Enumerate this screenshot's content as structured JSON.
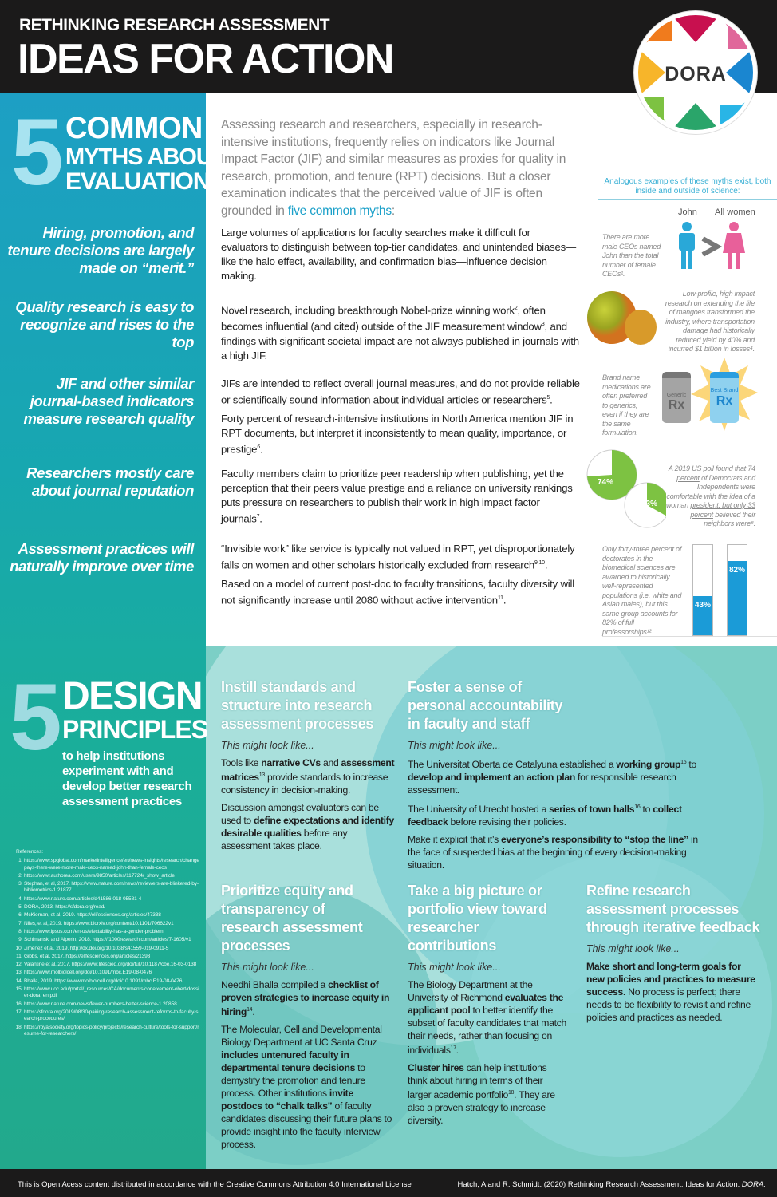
{
  "header": {
    "kicker": "RETHINKING RESEARCH ASSESSMENT",
    "title": "IDEAS FOR ACTION",
    "logo_text": "DORA"
  },
  "myths_section": {
    "number": "5",
    "heading_lines": [
      "COMMON",
      "MYTHS ABOUT",
      "EVALUATION"
    ],
    "intro": [
      {
        "t": "Assessing research and researchers, especially in research-intensive institutions, frequently relies on indicators like Journal Impact Factor (JIF) and similar measures as proxies for quality in research, promotion, and tenure (RPT) decisions. But a closer examination indicates that the perceived value of JIF is often grounded in "
      },
      {
        "t": "five common myths",
        "h": 1
      },
      {
        "t": ":"
      }
    ],
    "analogous_heading": "Analogous examples of these myths exist, both inside and outside of science:",
    "myths": [
      {
        "title": "Hiring, promotion, and tenure decisions are largely made on “merit.”",
        "body": [
          [
            {
              "t": "Large volumes of applications for faculty searches make it difficult for evaluators to distinguish between top-tier candidates, and unintended biases—like the halo effect, availability, and confirmation bias—influence decision making."
            }
          ]
        ]
      },
      {
        "title": "Quality research is easy to recognize and rises to the top",
        "body": [
          [
            {
              "t": "Novel research, including breakthrough Nobel-prize winning work"
            },
            {
              "s": "2"
            },
            {
              "t": ", often becomes influential (and cited) outside of the JIF measurement window"
            },
            {
              "s": "3"
            },
            {
              "t": ", and findings with significant societal impact are not always published in journals with a high JIF."
            }
          ]
        ]
      },
      {
        "title": "JIF and other similar journal-based indicators measure research quality",
        "body": [
          [
            {
              "t": "JIFs are intended to reflect overall journal measures, and do not provide reliable or scientifically sound information about individual articles or researchers"
            },
            {
              "s": "5"
            },
            {
              "t": "."
            }
          ],
          [
            {
              "t": "Forty percent of research-intensive institutions in North America mention JIF in RPT documents, but interpret it inconsistently to mean quality, importance, or prestige"
            },
            {
              "s": "6"
            },
            {
              "t": "."
            }
          ]
        ]
      },
      {
        "title": "Researchers mostly care about journal reputation",
        "body": [
          [
            {
              "t": "Faculty members claim to prioritize peer readership when publishing, yet the perception that their peers value prestige and a reliance on university rankings puts pressure on researchers to publish their work in high impact factor journals"
            },
            {
              "s": "7"
            },
            {
              "t": "."
            }
          ]
        ]
      },
      {
        "title": "Assessment practices will naturally improve over time",
        "body": [
          [
            {
              "t": "“Invisible work” like service is typically not valued in RPT, yet disproportionately falls on women and other scholars historically excluded from research"
            },
            {
              "s": "9,10"
            },
            {
              "t": "."
            }
          ],
          [
            {
              "t": "Based on a model of current post-doc to faculty transitions, faculty diversity will not significantly increase until 2080 without active intervention"
            },
            {
              "s": "11"
            },
            {
              "t": "."
            }
          ]
        ]
      }
    ],
    "examples": {
      "john": {
        "label_left": "John",
        "label_right": "All women",
        "text": "There are more male CEOs named John than the total number of female CEOs¹.",
        "colors": {
          "male": "#29a8d8",
          "female": "#e8609a"
        }
      },
      "mangoes": {
        "text": "Low-profile, high impact research on extending the life of mangoes transformed the industry, where transportation damage had historically reduced yield by 40% and incurred $1 billion in losses⁴."
      },
      "rx": {
        "text": "Brand name medications are often preferred to generics, even if they are the same formulation.",
        "generic_label": "Generic",
        "brand_label": "Best Brand",
        "rx": "Rx"
      },
      "poll": {
        "text_pre": "A 2019 US poll found that ",
        "link1": "74 percent",
        "text_mid": " of Democrats and Independents were comfortable with the idea of a woman ",
        "link2": "president, but only 33 percent",
        "text_post": " believed their neighbors were⁸.",
        "values": [
          74,
          33
        ],
        "labels": [
          "74%",
          "33%"
        ],
        "color": "#7dc242"
      },
      "bars": {
        "text": "Only forty-three percent of doctorates in the biomedical sciences are awarded to historically well-represented populations (i.e. white and Asian males), but this same group accounts for 82% of full professorships¹².",
        "values": [
          43,
          82
        ],
        "labels": [
          "43%",
          "82%"
        ],
        "color": "#1b9bd7"
      }
    }
  },
  "design_section": {
    "number": "5",
    "heading_lines": [
      "DESIGN",
      "PRINCIPLES"
    ],
    "subtitle": "to help institutions experiment with and develop better research assessment practices",
    "might_look": "This might look like...",
    "principles": [
      {
        "title": "Instill standards and structure into research assessment processes",
        "body": [
          [
            {
              "t": "Tools like "
            },
            {
              "t": "narrative CVs",
              "b": 1
            },
            {
              "t": " and "
            },
            {
              "t": "assessment matrices",
              "b": 1
            },
            {
              "s": "13"
            },
            {
              "t": " provide standards to increase consistency in decision-making."
            }
          ],
          [
            {
              "t": "Discussion amongst evaluators can be used to "
            },
            {
              "t": "define expectations and identify desirable qualities",
              "b": 1
            },
            {
              "t": " before any assessment takes place."
            }
          ]
        ]
      },
      {
        "title": "Foster a sense of personal accountability in faculty and staff",
        "body": [
          [
            {
              "t": "The Universitat Oberta de Catalyuna established a "
            },
            {
              "t": "working group",
              "b": 1
            },
            {
              "s": "15"
            },
            {
              "t": " to "
            },
            {
              "t": "develop and implement an action plan",
              "b": 1
            },
            {
              "t": " for responsible research assessment."
            }
          ],
          [
            {
              "t": "The University of Utrecht hosted a "
            },
            {
              "t": "series of town halls",
              "b": 1
            },
            {
              "s": "16"
            },
            {
              "t": " to "
            },
            {
              "t": "collect feedback",
              "b": 1
            },
            {
              "t": " before revising their policies."
            }
          ],
          [
            {
              "t": "Make it explicit that it’s "
            },
            {
              "t": "everyone’s responsibility to “stop the line”",
              "b": 1
            },
            {
              "t": " in the face of suspected bias at the beginning of every decision-making situation."
            }
          ]
        ]
      },
      {
        "title": "Prioritize equity and transparency of research assessment processes",
        "body": [
          [
            {
              "t": "Needhi Bhalla compiled a "
            },
            {
              "t": "checklist of proven strategies to increase equity in hiring",
              "b": 1
            },
            {
              "s": "14"
            },
            {
              "t": "."
            }
          ],
          [
            {
              "t": "The Molecular, Cell and Developmental Biology Department at UC Santa Cruz "
            },
            {
              "t": "includes untenured faculty in departmental tenure decisions",
              "b": 1
            },
            {
              "t": " to demystify the promotion and tenure process. Other institutions "
            },
            {
              "t": "invite postdocs to “chalk talks”",
              "b": 1
            },
            {
              "t": " of faculty candidates discussing their future plans to provide insight into the faculty interview process."
            }
          ]
        ]
      },
      {
        "title": "Take a big picture or portfolio view toward researcher contributions",
        "body": [
          [
            {
              "t": "The Biology Department at the University of Richmond "
            },
            {
              "t": "evaluates the applicant pool",
              "b": 1
            },
            {
              "t": " to better identify the subset of faculty candidates that match their needs, rather than focusing on individuals"
            },
            {
              "s": "17"
            },
            {
              "t": "."
            }
          ],
          [
            {
              "t": "Cluster hires",
              "b": 1
            },
            {
              "t": " can help institutions think about hiring in terms of their larger academic portfolio"
            },
            {
              "s": "18"
            },
            {
              "t": ". They are also a proven strategy to increase diversity."
            }
          ]
        ]
      },
      {
        "title": "Refine research assessment processes through iterative feedback",
        "body": [
          [
            {
              "t": "Make short and long-term goals for new policies and practices to measure success.",
              "b": 1
            },
            {
              "t": " No process is perfect; there needs to be flexibility to revisit and refine policies and practices as needed."
            }
          ]
        ]
      }
    ]
  },
  "references": {
    "title": "References:",
    "items": [
      "https://www.spglobal.com/marketintelligence/en/news-insights/research/changepays-there-were-more-male-ceos-named-john-than-female-ceos",
      "https://www.authorea.com/users/9850/articles/117724/_show_article",
      "Stephan, et al, 2017. https://www.nature.com/news/reviewers-are-blinkered-by-bibliometrics-1.21877",
      "https://www.nature.com/articles/d41586-018-05581-4",
      "DORA, 2013. https://sfdora.org/read/",
      "McKiernan, et al, 2019. https://elifesciences.org/articles/47338",
      "Niles, et al, 2019. https://www.biorxiv.org/content/10.1101/706622v1",
      "https://www.ipsos.com/en-us/electability-has-a-gender-problem",
      "Schimanski and Alperin, 2018. https://f1000research.com/articles/7-1605/v1",
      "Jimenez et al, 2019. http://dx.doi.org/10.1038/s41559-019-0911-5",
      "Gibbs, et al. 2017. https://elifesciences.org/articles/21393",
      "Valantine et al, 2017. https://www.lifescied.org/doi/full/10.1187/cbe.16-03-0138",
      "https://www.molbiolcell.org/doi/10.1091/mbc.E19-08-0476",
      "Bhalla, 2019. https://www.molbiolcell.org/doi/10.1091/mbc.E19-08-0476",
      "https://www.uoc.edu/portal/_resources/CA/documents/coneixement-obert/dossier-dora_en.pdf",
      "https://www.nature.com/news/fewer-numbers-better-science-1.20858",
      "https://sfdora.org/2019/08/30/pairing-research-assessment-reforms-to-faculty-search-procedures/",
      "https://royalsociety.org/topics-policy/projects/research-culture/tools-for-support/resume-for-researchers/"
    ]
  },
  "footer": {
    "license": "This is Open Acess content distributed in accordance with the Creative Commons Attribution 4.0 International License",
    "citation": "Hatch, A and R. Schmidt. (2020) Rethinking Research Assessment: Ideas for Action. ",
    "citation_italic": "DORA."
  },
  "colors": {
    "header_bg": "#1b1a1a",
    "accent_blue": "#1ba0c9",
    "teal": "#1aae9a",
    "heading_light": "#a8e3f0"
  }
}
